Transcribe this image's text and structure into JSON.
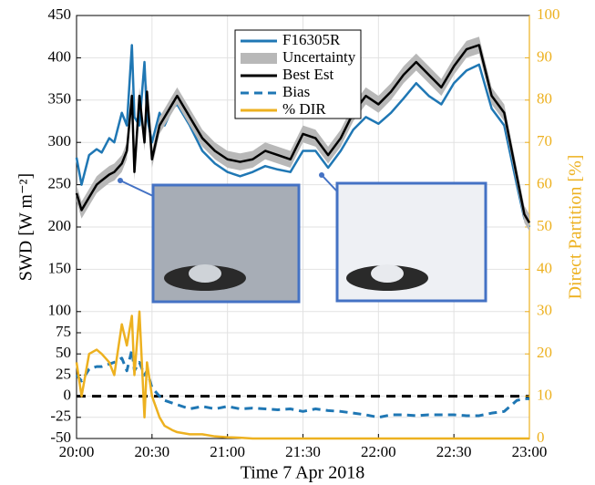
{
  "chart_data": {
    "type": "line",
    "xlabel": "Time 7 Apr 2018",
    "ylabel": "SWD [W m⁻²]",
    "y2label": "Direct Partition [%]",
    "x": [
      0,
      2,
      5,
      8,
      10,
      13,
      15,
      18,
      20,
      22,
      23,
      25,
      27,
      28,
      30,
      33,
      35,
      38,
      40,
      45,
      50,
      55,
      60,
      65,
      70,
      75,
      80,
      85,
      90,
      95,
      100,
      105,
      110,
      115,
      120,
      125,
      130,
      135,
      140,
      145,
      150,
      155,
      160,
      165,
      170,
      175,
      178,
      180
    ],
    "xlim": [
      0,
      180
    ],
    "xticks": [
      {
        "value": 0,
        "label": "20:00"
      },
      {
        "value": 30,
        "label": "20:30"
      },
      {
        "value": 60,
        "label": "21:00"
      },
      {
        "value": 90,
        "label": "21:30"
      },
      {
        "value": 120,
        "label": "22:00"
      },
      {
        "value": 150,
        "label": "22:30"
      },
      {
        "value": 180,
        "label": "23:00"
      }
    ],
    "ylim": [
      -50,
      450
    ],
    "yticks": [
      -50,
      -25,
      0,
      25,
      50,
      75,
      100,
      150,
      200,
      250,
      300,
      350,
      400,
      450
    ],
    "y2lim": [
      0,
      100
    ],
    "y2ticks": [
      0,
      10,
      20,
      30,
      40,
      50,
      60,
      70,
      80,
      90,
      100
    ],
    "grid": true,
    "legend": "top",
    "series": [
      {
        "name": "F16305R",
        "color": "#1f77b4",
        "values": [
          282,
          250,
          285,
          292,
          288,
          305,
          300,
          335,
          320,
          415,
          330,
          320,
          395,
          330,
          300,
          335,
          320,
          340,
          345,
          320,
          290,
          275,
          265,
          260,
          265,
          272,
          268,
          265,
          290,
          290,
          270,
          290,
          315,
          330,
          322,
          335,
          352,
          370,
          355,
          345,
          370,
          385,
          392,
          340,
          320,
          250,
          210,
          200
        ]
      },
      {
        "name": "Uncertainty",
        "color": "#b8b8b8",
        "upper": [
          250,
          230,
          245,
          260,
          265,
          272,
          275,
          285,
          300,
          365,
          275,
          365,
          310,
          370,
          290,
          330,
          340,
          355,
          365,
          340,
          315,
          300,
          290,
          287,
          290,
          300,
          295,
          290,
          320,
          315,
          295,
          315,
          345,
          365,
          355,
          370,
          390,
          405,
          390,
          375,
          400,
          420,
          425,
          365,
          345,
          270,
          225,
          215
        ],
        "lower": [
          230,
          210,
          225,
          240,
          245,
          252,
          255,
          265,
          280,
          345,
          255,
          345,
          290,
          350,
          270,
          310,
          320,
          335,
          345,
          320,
          295,
          280,
          270,
          267,
          270,
          280,
          275,
          270,
          300,
          295,
          275,
          295,
          325,
          345,
          335,
          350,
          370,
          385,
          370,
          355,
          380,
          400,
          405,
          345,
          325,
          250,
          205,
          195
        ]
      },
      {
        "name": "Best Est",
        "color": "#000000",
        "values": [
          240,
          220,
          235,
          250,
          255,
          262,
          265,
          275,
          290,
          355,
          265,
          355,
          300,
          360,
          280,
          320,
          330,
          345,
          355,
          330,
          305,
          290,
          280,
          277,
          280,
          290,
          285,
          280,
          310,
          305,
          285,
          305,
          335,
          355,
          345,
          360,
          380,
          395,
          380,
          365,
          390,
          410,
          415,
          355,
          335,
          260,
          215,
          205
        ]
      },
      {
        "name": "Bias",
        "color": "#1f77b4",
        "dashed": true,
        "values": [
          25,
          18,
          32,
          35,
          35,
          38,
          40,
          45,
          30,
          55,
          30,
          40,
          25,
          30,
          10,
          0,
          -5,
          -8,
          -10,
          -15,
          -12,
          -15,
          -12,
          -15,
          -14,
          -15,
          -16,
          -15,
          -18,
          -15,
          -17,
          -18,
          -20,
          -22,
          -25,
          -22,
          -22,
          -23,
          -22,
          -22,
          -22,
          -23,
          -23,
          -20,
          -18,
          -5,
          -3,
          -3
        ]
      },
      {
        "name": "% DIR",
        "color": "#edb120",
        "axis": "y2",
        "values": [
          18,
          10,
          20,
          21,
          20,
          18,
          15,
          27,
          22,
          29,
          15,
          30,
          5,
          18,
          10,
          5,
          3,
          2,
          1.5,
          1,
          1,
          0.5,
          0.3,
          0.2,
          0,
          0,
          0,
          0,
          0,
          0,
          0,
          0,
          0,
          0,
          0,
          0,
          0,
          0,
          0,
          0,
          0,
          0,
          0,
          0,
          0,
          0,
          0,
          0
        ]
      }
    ]
  }
}
